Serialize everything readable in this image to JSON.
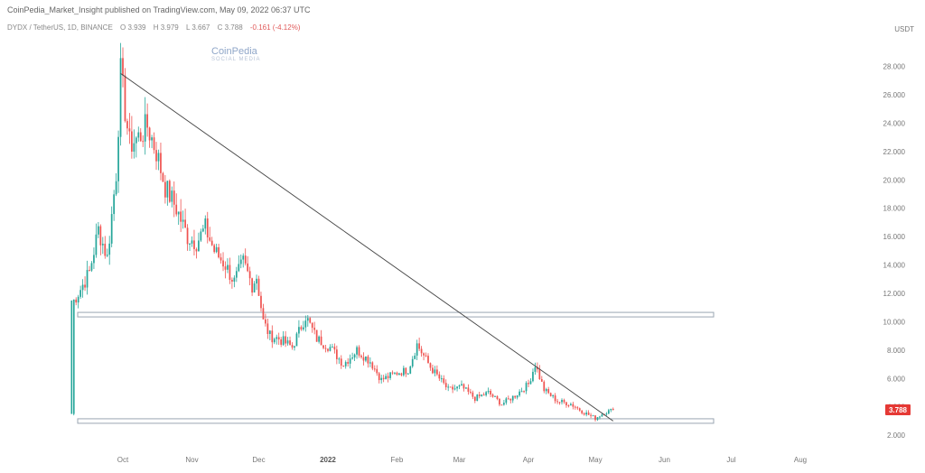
{
  "header": {
    "caption": "CoinPedia_Market_Insight published on TradingView.com, May 09, 2022 06:37 UTC",
    "symbol": "DYDX / TetherUS, 1D, BINANCE",
    "open": "O 3.939",
    "high": "H 3.979",
    "low": "L 3.667",
    "close": "C 3.788",
    "change": "-0.161 (-4.12%)",
    "currency": "USDT"
  },
  "watermark": {
    "brand": "CoinPedia",
    "sub": "SOCIAL MEDIA"
  },
  "colors": {
    "up": "#26a69a",
    "down": "#ef5350",
    "trendline": "#444444",
    "level_band": "#9aa6b2",
    "price_badge": "#e53935"
  },
  "chart_data": {
    "type": "candlestick",
    "symbol": "DYDX/USDT",
    "timeframe": "1D",
    "ylim": [
      1.5,
      29.5
    ],
    "y_ticks": [
      "2.000",
      "4.000",
      "6.000",
      "8.000",
      "10.000",
      "12.000",
      "14.000",
      "16.000",
      "18.000",
      "20.000",
      "22.000",
      "24.000",
      "26.000",
      "28.000"
    ],
    "x_ticks": [
      "Oct",
      "Nov",
      "Dec",
      "2022",
      "Feb",
      "Mar",
      "Apr",
      "May",
      "Jun",
      "Jul",
      "Aug"
    ],
    "price_path": [
      [
        "2021-09-08",
        3.5
      ],
      [
        "2021-09-09",
        11.5
      ],
      [
        "2021-09-12",
        12.3
      ],
      [
        "2021-09-16",
        13.5
      ],
      [
        "2021-09-20",
        16.5
      ],
      [
        "2021-09-24",
        14.5
      ],
      [
        "2021-09-28",
        20.5
      ],
      [
        "2021-09-30",
        27.5
      ],
      [
        "2021-10-04",
        22.5
      ],
      [
        "2021-10-08",
        23.0
      ],
      [
        "2021-10-12",
        23.8
      ],
      [
        "2021-10-16",
        22.0
      ],
      [
        "2021-10-20",
        19.5
      ],
      [
        "2021-10-25",
        18.0
      ],
      [
        "2021-10-30",
        16.0
      ],
      [
        "2021-11-03",
        15.6
      ],
      [
        "2021-11-07",
        16.6
      ],
      [
        "2021-11-11",
        15.0
      ],
      [
        "2021-11-16",
        14.0
      ],
      [
        "2021-11-20",
        12.8
      ],
      [
        "2021-11-24",
        14.2
      ],
      [
        "2021-11-28",
        12.6
      ],
      [
        "2021-11-30",
        13.2
      ],
      [
        "2021-12-03",
        10.0
      ],
      [
        "2021-12-06",
        9.0
      ],
      [
        "2021-12-10",
        8.8
      ],
      [
        "2021-12-16",
        8.2
      ],
      [
        "2021-12-22",
        10.4
      ],
      [
        "2021-12-27",
        8.8
      ],
      [
        "2022-01-02",
        8.2
      ],
      [
        "2022-01-08",
        7.0
      ],
      [
        "2022-01-14",
        8.0
      ],
      [
        "2022-01-20",
        7.2
      ],
      [
        "2022-01-25",
        5.9
      ],
      [
        "2022-02-01",
        6.4
      ],
      [
        "2022-02-06",
        6.6
      ],
      [
        "2022-02-10",
        8.4
      ],
      [
        "2022-02-16",
        6.8
      ],
      [
        "2022-02-24",
        5.2
      ],
      [
        "2022-03-02",
        5.4
      ],
      [
        "2022-03-08",
        4.6
      ],
      [
        "2022-03-14",
        5.0
      ],
      [
        "2022-03-20",
        4.2
      ],
      [
        "2022-03-26",
        4.8
      ],
      [
        "2022-04-01",
        5.6
      ],
      [
        "2022-04-04",
        7.0
      ],
      [
        "2022-04-08",
        5.2
      ],
      [
        "2022-04-14",
        4.4
      ],
      [
        "2022-04-20",
        4.2
      ],
      [
        "2022-04-26",
        3.6
      ],
      [
        "2022-05-01",
        3.2
      ],
      [
        "2022-05-05",
        3.6
      ],
      [
        "2022-05-09",
        3.788
      ]
    ],
    "annotations": [
      {
        "kind": "horizontal_band",
        "y": 10.5
      },
      {
        "kind": "horizontal_band",
        "y": 3.0
      },
      {
        "kind": "trendline",
        "from": [
          "2021-09-30",
          27.5
        ],
        "to": [
          "2022-05-09",
          3.0
        ]
      }
    ],
    "last_price": "3.788",
    "grid": false,
    "legend": "none"
  }
}
